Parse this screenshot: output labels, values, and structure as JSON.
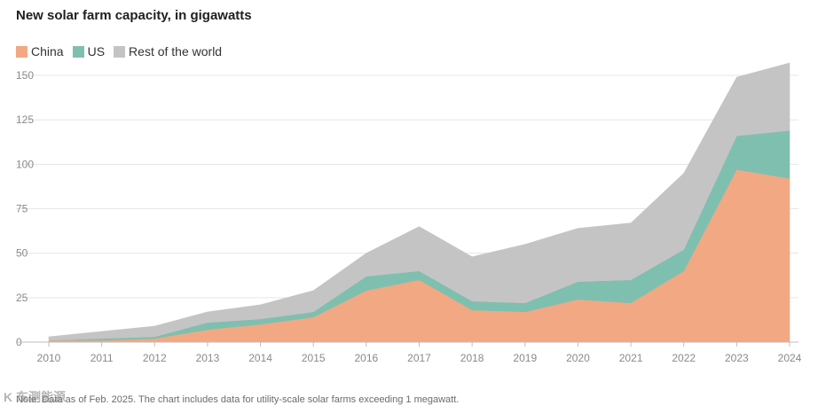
{
  "colors": {
    "china": "#f2a883",
    "us": "#7fbfb0",
    "rest": "#c4c4c4",
    "grid": "#e6e6e6",
    "axis": "#bdbdbd"
  },
  "chart_data": {
    "type": "area",
    "stacked": true,
    "title": "New solar farm capacity, in gigawatts",
    "xlabel": "",
    "ylabel": "",
    "x": [
      2010,
      2011,
      2012,
      2013,
      2014,
      2015,
      2016,
      2017,
      2018,
      2019,
      2020,
      2021,
      2022,
      2023,
      2024
    ],
    "ylim": [
      0,
      157
    ],
    "yticks": [
      0,
      25,
      50,
      75,
      100,
      125,
      150
    ],
    "legend_position": "top-left",
    "series": [
      {
        "name": "China",
        "color_key": "china",
        "values": [
          1,
          1,
          2,
          7,
          10,
          14,
          29,
          35,
          18,
          17,
          24,
          22,
          40,
          97,
          92
        ]
      },
      {
        "name": "US",
        "color_key": "us",
        "values": [
          0,
          1,
          1,
          4,
          3,
          3,
          8,
          5,
          5,
          5,
          10,
          13,
          12,
          19,
          27
        ]
      },
      {
        "name": "Rest of the world",
        "color_key": "rest",
        "values": [
          2,
          4,
          6,
          6,
          8,
          12,
          13,
          25,
          25,
          33,
          30,
          32,
          43,
          33,
          38
        ]
      }
    ],
    "note": "Note: Data as of Feb. 2025. The chart includes data for utility-scale solar farms exceeding 1 megawatt."
  },
  "watermark": "K 东测能源"
}
